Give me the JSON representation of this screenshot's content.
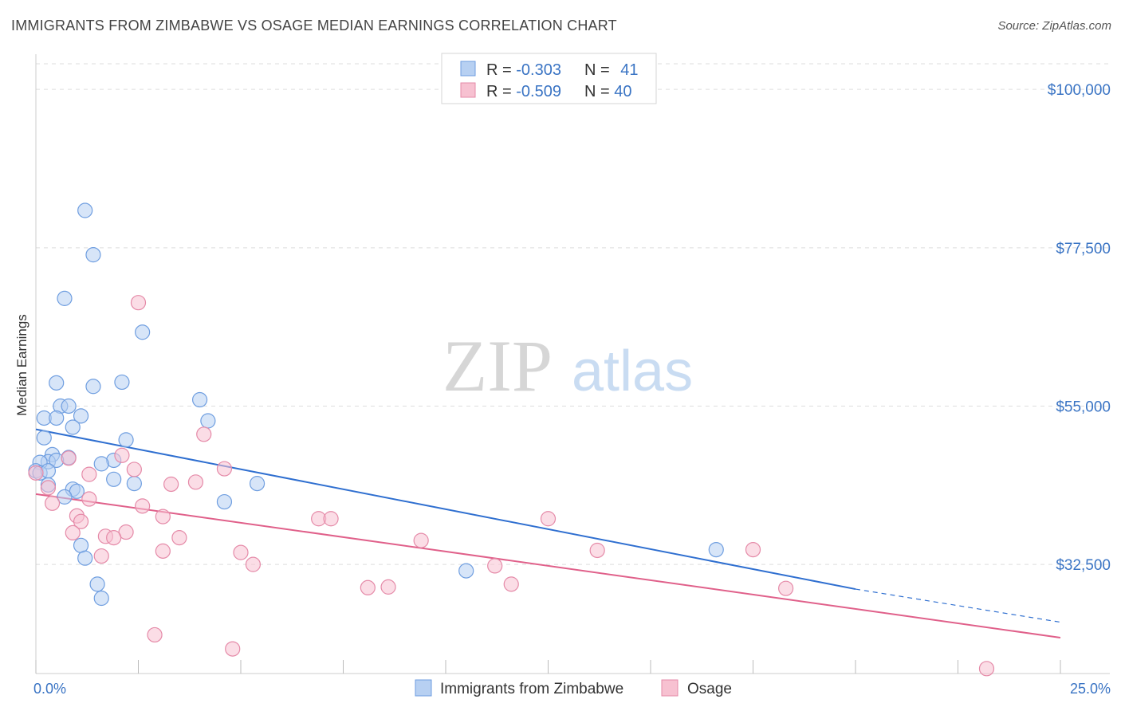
{
  "title": "IMMIGRANTS FROM ZIMBABWE VS OSAGE MEDIAN EARNINGS CORRELATION CHART",
  "source": "Source: ZipAtlas.com",
  "watermark": {
    "zip": "ZIP",
    "atlas": "atlas"
  },
  "colors": {
    "blue_fill": "#b7d0f2",
    "blue_stroke": "#6f9ee0",
    "blue_line": "#2f6fd0",
    "pink_fill": "#f7c1d1",
    "pink_stroke": "#e58aa8",
    "pink_line": "#e0608a",
    "grid": "#dddddd",
    "axis_text": "#3a74c4"
  },
  "legend": {
    "rows": [
      {
        "r_label": "R = ",
        "r_value": "-0.303",
        "n_label": "N = ",
        "n_value": "41"
      },
      {
        "r_label": "R = ",
        "r_value": "-0.509",
        "n_label": "N = ",
        "n_value": "40"
      }
    ]
  },
  "bottom_legend": [
    "Immigrants from Zimbabwe",
    "Osage"
  ],
  "chart_data": {
    "type": "scatter",
    "xlabel": "",
    "ylabel": "Median Earnings",
    "xlim": [
      0,
      25
    ],
    "ylim": [
      17000,
      105000
    ],
    "x_tick_labels": [
      "0.0%",
      "25.0%"
    ],
    "y_ticks": [
      32500,
      55000,
      77500,
      100000
    ],
    "y_tick_labels": [
      "$32,500",
      "$55,000",
      "$77,500",
      "$100,000"
    ],
    "grid": true,
    "series": [
      {
        "name": "Immigrants from Zimbabwe",
        "color": "#b7d0f2",
        "points": [
          [
            1.2,
            82800
          ],
          [
            1.4,
            76500
          ],
          [
            0.7,
            70300
          ],
          [
            2.6,
            65500
          ],
          [
            0.5,
            58300
          ],
          [
            1.4,
            57800
          ],
          [
            2.1,
            58400
          ],
          [
            4.0,
            55900
          ],
          [
            0.6,
            55000
          ],
          [
            0.8,
            55000
          ],
          [
            1.1,
            53600
          ],
          [
            0.2,
            53300
          ],
          [
            0.5,
            53300
          ],
          [
            4.2,
            52900
          ],
          [
            0.9,
            52000
          ],
          [
            0.2,
            50500
          ],
          [
            2.2,
            50200
          ],
          [
            0.4,
            48100
          ],
          [
            0.8,
            47700
          ],
          [
            0.3,
            47100
          ],
          [
            0.5,
            47300
          ],
          [
            1.9,
            47300
          ],
          [
            1.6,
            46800
          ],
          [
            0.1,
            47000
          ],
          [
            0.0,
            45800
          ],
          [
            0.1,
            45500
          ],
          [
            1.9,
            44600
          ],
          [
            2.4,
            44000
          ],
          [
            5.4,
            44000
          ],
          [
            0.3,
            43800
          ],
          [
            0.9,
            43200
          ],
          [
            1.0,
            42900
          ],
          [
            0.7,
            42100
          ],
          [
            4.6,
            41400
          ],
          [
            1.1,
            35200
          ],
          [
            1.2,
            33400
          ],
          [
            10.5,
            31600
          ],
          [
            16.6,
            34600
          ],
          [
            1.5,
            29700
          ],
          [
            1.6,
            27700
          ],
          [
            0.3,
            45800
          ]
        ],
        "trend": {
          "x": [
            0,
            20
          ],
          "y": [
            51700,
            29000
          ],
          "dashed_to": [
            25,
            24300
          ]
        }
      },
      {
        "name": "Osage",
        "color": "#f7c1d1",
        "points": [
          [
            2.5,
            69700
          ],
          [
            4.1,
            51000
          ],
          [
            2.1,
            48000
          ],
          [
            0.8,
            47600
          ],
          [
            4.6,
            46100
          ],
          [
            2.4,
            46000
          ],
          [
            1.3,
            45300
          ],
          [
            3.9,
            44200
          ],
          [
            3.3,
            43900
          ],
          [
            0.3,
            43400
          ],
          [
            1.3,
            41800
          ],
          [
            0.4,
            41200
          ],
          [
            2.6,
            40800
          ],
          [
            1.0,
            39400
          ],
          [
            3.1,
            39300
          ],
          [
            6.9,
            39000
          ],
          [
            7.2,
            39000
          ],
          [
            12.5,
            39000
          ],
          [
            1.1,
            38600
          ],
          [
            0.9,
            37000
          ],
          [
            2.2,
            37100
          ],
          [
            1.7,
            36500
          ],
          [
            1.9,
            36300
          ],
          [
            3.5,
            36300
          ],
          [
            9.4,
            35900
          ],
          [
            3.1,
            34400
          ],
          [
            5.0,
            34200
          ],
          [
            1.6,
            33700
          ],
          [
            13.7,
            34500
          ],
          [
            17.5,
            34600
          ],
          [
            5.3,
            32500
          ],
          [
            11.2,
            32300
          ],
          [
            11.6,
            29700
          ],
          [
            8.1,
            29200
          ],
          [
            8.6,
            29300
          ],
          [
            18.3,
            29100
          ],
          [
            2.9,
            22500
          ],
          [
            4.8,
            20500
          ],
          [
            23.2,
            17700
          ],
          [
            0.0,
            45500
          ]
        ],
        "trend": {
          "x": [
            0,
            25
          ],
          "y": [
            42500,
            22100
          ]
        }
      }
    ]
  }
}
